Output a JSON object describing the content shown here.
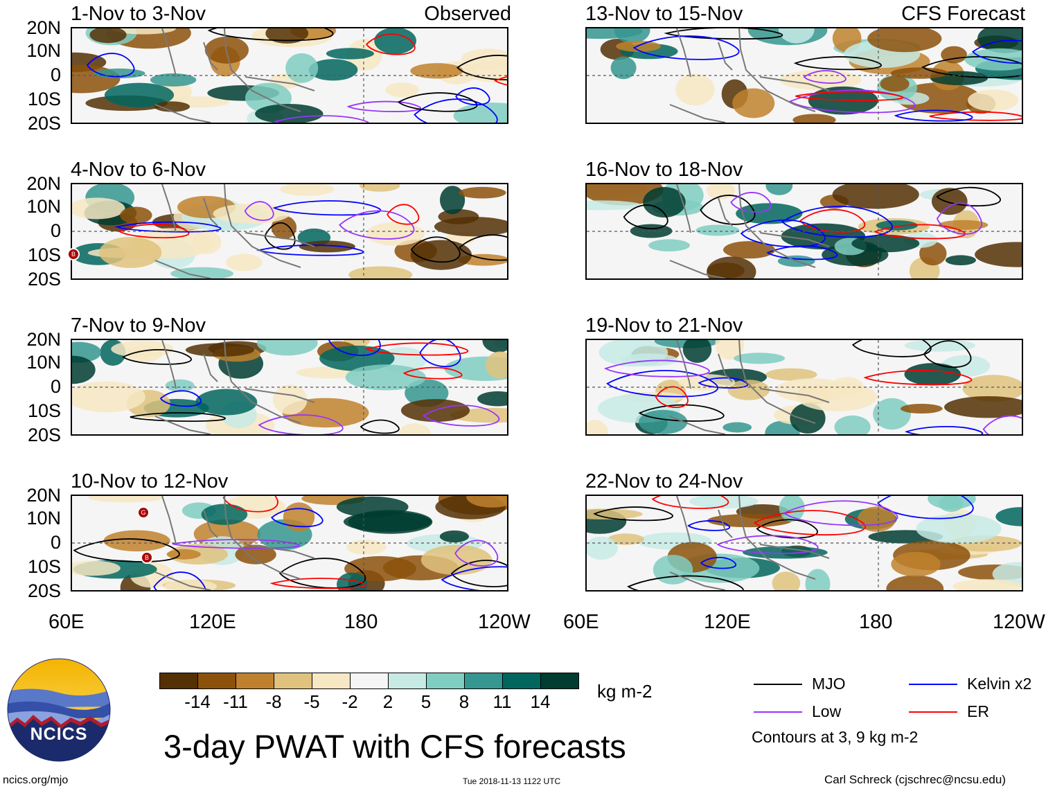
{
  "panels": {
    "observed_tag": "Observed",
    "forecast_tag": "CFS Forecast",
    "left": [
      {
        "title": "1-Nov to 3-Nov"
      },
      {
        "title": "4-Nov to 6-Nov"
      },
      {
        "title": "7-Nov to 9-Nov"
      },
      {
        "title": "10-Nov to 12-Nov"
      }
    ],
    "right": [
      {
        "title": "13-Nov to 15-Nov"
      },
      {
        "title": "16-Nov to 18-Nov"
      },
      {
        "title": "19-Nov to 21-Nov"
      },
      {
        "title": "22-Nov to 24-Nov"
      }
    ]
  },
  "axes": {
    "lat_ticks": [
      "20N",
      "10N",
      "0",
      "10S",
      "20S"
    ],
    "lon_ticks": [
      "60E",
      "120E",
      "180",
      "120W"
    ]
  },
  "storm_markers": [
    "B",
    "G",
    "B"
  ],
  "colorbar": {
    "units": "kg m-2",
    "labels": [
      "-14",
      "-11",
      "-8",
      "-5",
      "-2",
      "2",
      "5",
      "8",
      "11",
      "14"
    ],
    "colors": [
      "#543005",
      "#8c510a",
      "#bf812d",
      "#dfc27d",
      "#f6e8c3",
      "#f5f5f5",
      "#c7eae5",
      "#80cdc1",
      "#35978f",
      "#01665e",
      "#003c30"
    ]
  },
  "legend": {
    "items": [
      {
        "label": "MJO",
        "color": "#000000"
      },
      {
        "label": "Kelvin x2",
        "color": "#0000ff"
      },
      {
        "label": "Low",
        "color": "#9933ff"
      },
      {
        "label": "ER",
        "color": "#ff0000"
      }
    ],
    "note": "Contours at 3, 9 kg m-2"
  },
  "title": "3-day PWAT with CFS forecasts",
  "logo_text": "NCICS",
  "footer": {
    "url": "ncics.org/mjo",
    "timestamp": "Tue 2018-11-13 1122 UTC",
    "credit": "Carl Schreck (cjschrec@ncsu.edu)"
  }
}
